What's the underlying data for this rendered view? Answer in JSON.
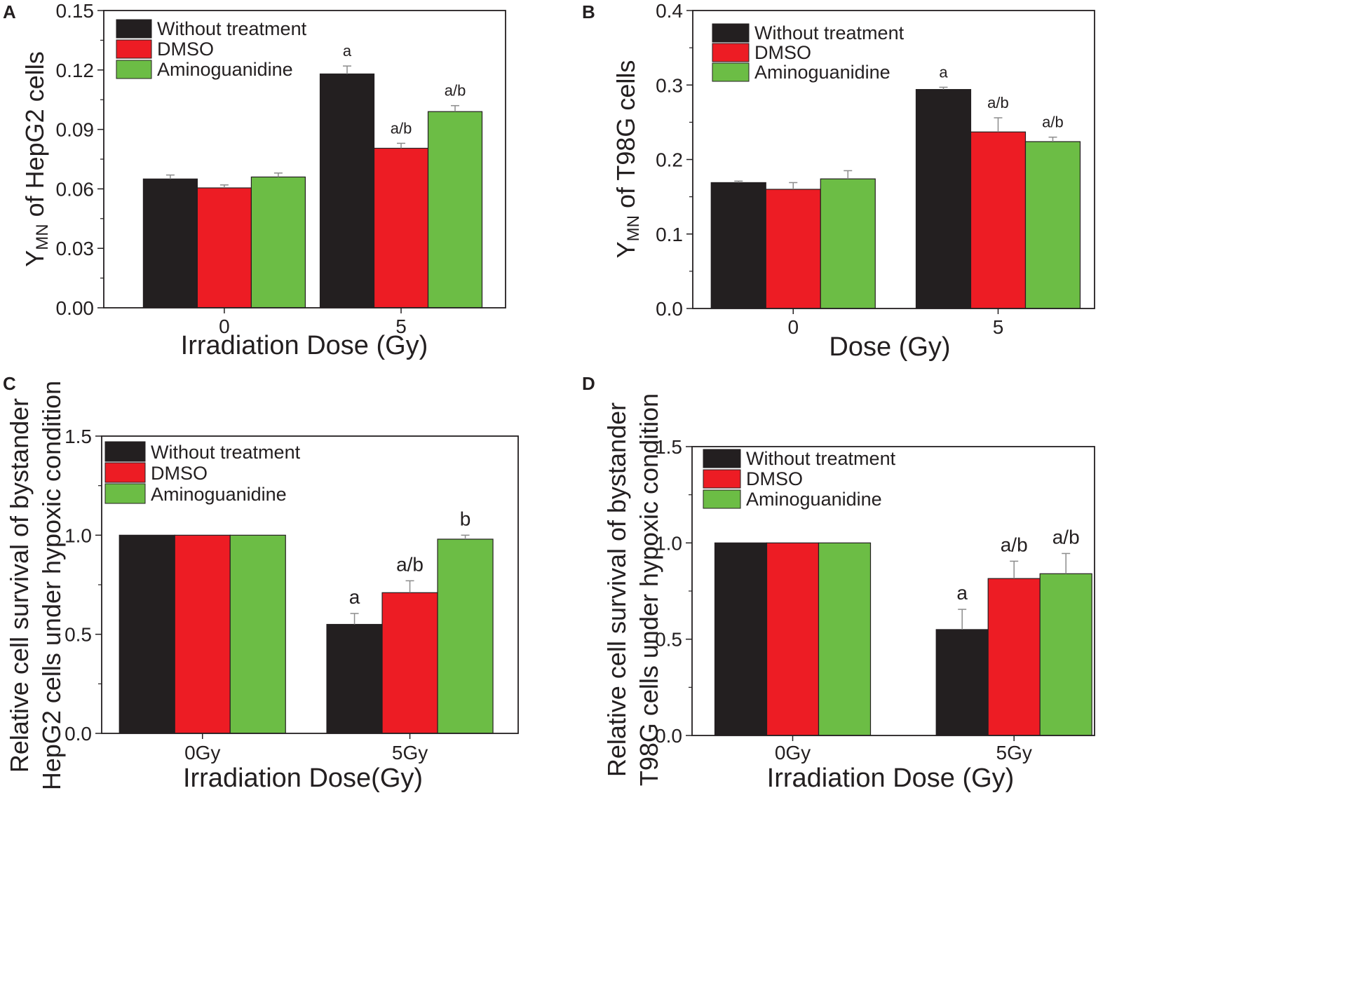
{
  "colors": {
    "without_treatment": "#231f20",
    "dmso": "#ed1c24",
    "aminoguanidine": "#6cbd45",
    "axis": "#231f20",
    "error_bar": "#8c8c8c"
  },
  "chart_data": [
    {
      "panel": "A",
      "type": "bar",
      "title": "",
      "xlabel": "Irradiation Dose (Gy)",
      "ylabel": "Y",
      "ylabel_sub": "MN",
      "ylabel_rest": " of HepG2 cells",
      "categories": [
        "0",
        "5"
      ],
      "ylim": [
        0,
        0.15
      ],
      "yticks": [
        "0.00",
        "0.03",
        "0.06",
        "0.09",
        "0.12",
        "0.15"
      ],
      "legend": "top-left",
      "series": [
        {
          "name": "Without treatment",
          "values": [
            0.065,
            0.118
          ],
          "errors": [
            0.002,
            0.004
          ],
          "labels": [
            "",
            "a"
          ]
        },
        {
          "name": "DMSO",
          "values": [
            0.0605,
            0.0805
          ],
          "errors": [
            0.0015,
            0.0025
          ],
          "labels": [
            "",
            "a/b"
          ]
        },
        {
          "name": "Aminoguanidine",
          "values": [
            0.066,
            0.099
          ],
          "errors": [
            0.002,
            0.003
          ],
          "labels": [
            "",
            "a/b"
          ]
        }
      ]
    },
    {
      "panel": "B",
      "type": "bar",
      "title": "",
      "xlabel": "Dose (Gy)",
      "ylabel": "Y",
      "ylabel_sub": "MN",
      "ylabel_rest": " of T98G cells",
      "categories": [
        "0",
        "5"
      ],
      "ylim": [
        0,
        0.4
      ],
      "yticks": [
        "0.0",
        "0.1",
        "0.2",
        "0.3",
        "0.4"
      ],
      "legend": "top-left",
      "series": [
        {
          "name": "Without treatment",
          "values": [
            0.169,
            0.294
          ],
          "errors": [
            0.002,
            0.003
          ],
          "labels": [
            "",
            "a"
          ]
        },
        {
          "name": "DMSO",
          "values": [
            0.16,
            0.237
          ],
          "errors": [
            0.009,
            0.019
          ],
          "labels": [
            "",
            "a/b"
          ]
        },
        {
          "name": "Aminoguanidine",
          "values": [
            0.174,
            0.224
          ],
          "errors": [
            0.011,
            0.006
          ],
          "labels": [
            "",
            "a/b"
          ]
        }
      ]
    },
    {
      "panel": "C",
      "type": "bar",
      "title": "",
      "xlabel": "Irradiation Dose(Gy)",
      "ylabel_lines": [
        "Relative cell survival of bystander",
        "HepG2 cells under hypoxic condition"
      ],
      "categories": [
        "0Gy",
        "5Gy"
      ],
      "ylim": [
        0,
        1.5
      ],
      "yticks": [
        "0.0",
        "0.5",
        "1.0",
        "1.5"
      ],
      "legend": "top-left",
      "series": [
        {
          "name": "Without treatment",
          "values": [
            1.0,
            0.55
          ],
          "errors": [
            0,
            0.055
          ],
          "labels": [
            "",
            "a"
          ]
        },
        {
          "name": "DMSO",
          "values": [
            1.0,
            0.71
          ],
          "errors": [
            0,
            0.06
          ],
          "labels": [
            "",
            "a/b"
          ]
        },
        {
          "name": "Aminoguanidine",
          "values": [
            1.0,
            0.98
          ],
          "errors": [
            0,
            0.02
          ],
          "labels": [
            "",
            "b"
          ]
        }
      ]
    },
    {
      "panel": "D",
      "type": "bar",
      "title": "",
      "xlabel": "Irradiation Dose (Gy)",
      "ylabel_lines": [
        "Relative cell survival of bystander",
        "T98G cells under hypoxic condition"
      ],
      "categories": [
        "0Gy",
        "5Gy"
      ],
      "ylim": [
        0,
        1.5
      ],
      "yticks": [
        "0.0",
        "0.5",
        "1.0",
        "1.5"
      ],
      "legend": "top-left",
      "series": [
        {
          "name": "Without treatment",
          "values": [
            1.0,
            0.55
          ],
          "errors": [
            0,
            0.105
          ],
          "labels": [
            "",
            "a"
          ]
        },
        {
          "name": "DMSO",
          "values": [
            1.0,
            0.815
          ],
          "errors": [
            0,
            0.09
          ],
          "labels": [
            "",
            "a/b"
          ]
        },
        {
          "name": "Aminoguanidine",
          "values": [
            1.0,
            0.84
          ],
          "errors": [
            0,
            0.105
          ],
          "labels": [
            "",
            "a/b"
          ]
        }
      ]
    }
  ]
}
